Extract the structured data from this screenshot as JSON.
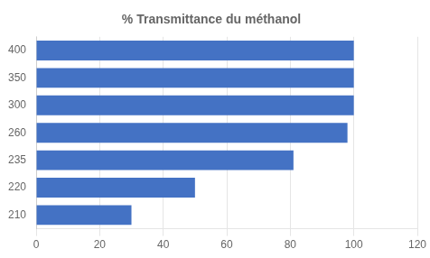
{
  "chart_data": {
    "type": "bar",
    "orientation": "horizontal",
    "title": "% Transmittance du méthanol",
    "categories": [
      "210",
      "220",
      "235",
      "260",
      "300",
      "350",
      "400"
    ],
    "values": [
      30,
      50,
      81,
      98,
      100,
      100,
      100
    ],
    "color": "#4472C4",
    "xlim": [
      0,
      120
    ],
    "xticks": [
      0,
      20,
      40,
      60,
      80,
      100,
      120
    ],
    "grid": true
  }
}
